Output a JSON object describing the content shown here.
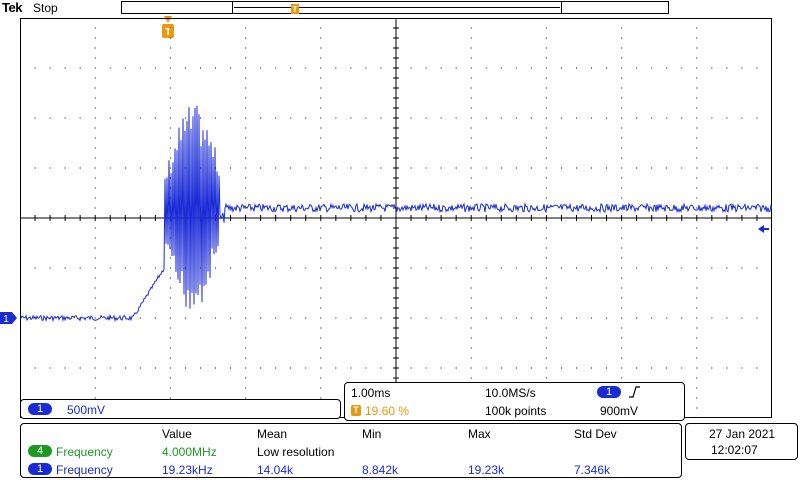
{
  "header": {
    "brand": "Tek",
    "status": "Stop"
  },
  "colors": {
    "ch1": "#1a2bd6",
    "ch4": "#1e9a22",
    "trigger": "#e69a0c",
    "grid": "#000000"
  },
  "markers": {
    "trigger_position_label": "T",
    "ch1_ground_label": "1"
  },
  "channel_box": {
    "chip": "1",
    "scale": "500mV"
  },
  "acquisition": {
    "timebase": "1.00ms",
    "sample_rate": "10.0MS/s",
    "trigger_chip": "1",
    "trigger_slope_icon": "rising-edge-icon",
    "trigger_position_chip": "T",
    "trigger_position": "19.60 %",
    "record_length": "100k points",
    "trigger_level": "900mV"
  },
  "measurements": {
    "headers": [
      "Value",
      "Mean",
      "Min",
      "Max",
      "Std Dev"
    ],
    "rows": [
      {
        "chip": "4",
        "name": "Frequency",
        "value": "4.000MHz",
        "mean": "Low resolution",
        "min": "",
        "max": "",
        "std": ""
      },
      {
        "chip": "1",
        "name": "Frequency",
        "value": "19.23kHz",
        "mean": "14.04k",
        "min": "8.842k",
        "max": "19.23k",
        "std": "7.346k"
      }
    ]
  },
  "datetime": {
    "date": "27 Jan  2021",
    "time": "12:02:07"
  }
}
